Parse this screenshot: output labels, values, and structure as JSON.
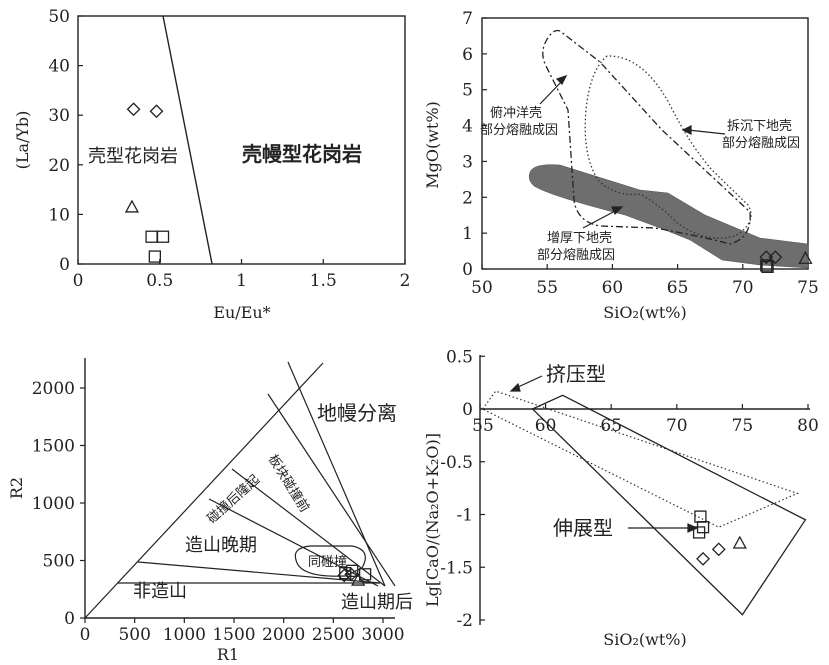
{
  "chart_data": [
    {
      "id": "p1",
      "type": "scatter",
      "xlabel": "Eu/Eu*",
      "ylabel": "(La/Yb)",
      "xlim": [
        0,
        2
      ],
      "ylim": [
        0,
        50
      ],
      "xticks": [
        "0",
        "0.5",
        "1",
        "1.5",
        "2"
      ],
      "yticks": [
        "0",
        "10",
        "20",
        "30",
        "40",
        "50"
      ],
      "divider": [
        [
          0.52,
          50
        ],
        [
          0.82,
          0
        ]
      ],
      "regions": [
        "壳型花岗岩",
        "壳幔型花岗岩"
      ],
      "points": {
        "diamond": [
          [
            0.34,
            31.2
          ],
          [
            0.48,
            30.8
          ]
        ],
        "triangle": [
          [
            0.33,
            11.5
          ]
        ],
        "square": [
          [
            0.45,
            5.5
          ],
          [
            0.52,
            5.5
          ],
          [
            0.47,
            1.5
          ]
        ]
      }
    },
    {
      "id": "p2",
      "type": "scatter",
      "xlabel": "SiO₂(wt%)",
      "ylabel": "MgO(wt%)",
      "xlim": [
        50,
        75
      ],
      "ylim": [
        0,
        7
      ],
      "xticks": [
        "50",
        "55",
        "60",
        "65",
        "70",
        "75"
      ],
      "yticks": [
        "0",
        "1",
        "2",
        "3",
        "4",
        "5",
        "6",
        "7"
      ],
      "fields": [
        {
          "label": [
            "俯冲洋壳",
            "部分熔融成因"
          ],
          "style": "dash-dot"
        },
        {
          "label": [
            "拆沉下地壳",
            "部分熔融成因"
          ],
          "style": "dotted"
        },
        {
          "label": [
            "增厚下地壳",
            "部分熔融成因"
          ],
          "style": "filled"
        }
      ],
      "points": {
        "diamond": [
          [
            71.8,
            0.33
          ],
          [
            72.5,
            0.33
          ]
        ],
        "triangle": [
          [
            74.8,
            0.3
          ]
        ],
        "square": [
          [
            71.8,
            0.1
          ],
          [
            71.9,
            0.06
          ]
        ]
      }
    },
    {
      "id": "p3",
      "type": "scatter",
      "xlabel": "R1",
      "ylabel": "R2",
      "xlim": [
        0,
        3000
      ],
      "ylim": [
        0,
        2300
      ],
      "xticks": [
        "0",
        "500",
        "1000",
        "1500",
        "2000",
        "2500",
        "3000"
      ],
      "yticks": [
        "0",
        "500",
        "1000",
        "1500",
        "2000"
      ],
      "fields": [
        "地幔分离",
        "板块碰撞前",
        "碰撞后隆起",
        "造山晚期",
        "同碰撞",
        "非造山",
        "造山期后"
      ],
      "points": {
        "diamond": [
          [
            2610,
            370
          ],
          [
            2680,
            380
          ]
        ],
        "triangle": [
          [
            2750,
            330
          ]
        ],
        "square": [
          [
            2620,
            390
          ],
          [
            2690,
            410
          ],
          [
            2820,
            380
          ]
        ]
      }
    },
    {
      "id": "p4",
      "type": "scatter",
      "xlabel": "SiO₂(wt%)",
      "ylabel": "Lg[CaO/(Na₂O+K₂O)]",
      "xlim": [
        55,
        80
      ],
      "ylim": [
        -2,
        0.5
      ],
      "xticks": [
        "55",
        "60",
        "65",
        "70",
        "75",
        "80"
      ],
      "yticks": [
        "0.5",
        "0",
        "-0.5",
        "-1",
        "-1.5",
        "-2"
      ],
      "fields": [
        {
          "label": "挤压型",
          "style": "dotted"
        },
        {
          "label": "伸展型",
          "style": "solid"
        }
      ],
      "points": {
        "square": [
          [
            71.8,
            -1.02
          ],
          [
            72.0,
            -1.12
          ],
          [
            71.7,
            -1.17
          ]
        ],
        "diamond": [
          [
            73.2,
            -1.33
          ],
          [
            72.0,
            -1.42
          ]
        ],
        "triangle": [
          [
            74.8,
            -1.27
          ]
        ]
      }
    }
  ]
}
